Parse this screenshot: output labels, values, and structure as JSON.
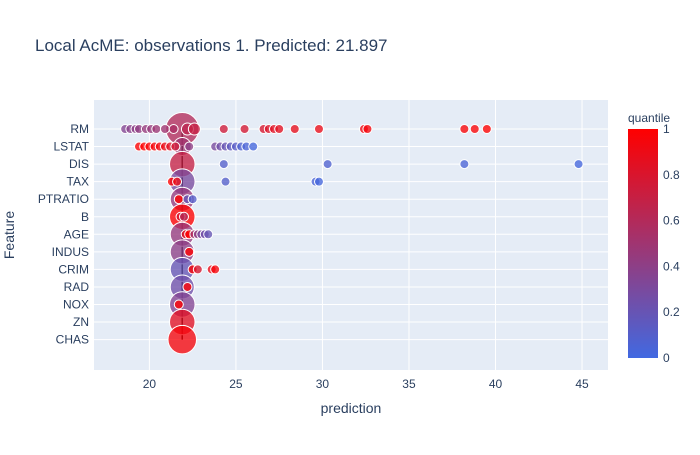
{
  "chart_data": {
    "type": "scatter",
    "title": "Local AcME: observations 1. Predicted: 21.897",
    "xlabel": "prediction",
    "ylabel": "Feature",
    "xlim": [
      16.8,
      46.5
    ],
    "xticks": [
      20,
      25,
      30,
      35,
      40,
      45
    ],
    "grid": true,
    "baseline": 21.897,
    "features": [
      "RM",
      "LSTAT",
      "DIS",
      "TAX",
      "PTRATIO",
      "B",
      "AGE",
      "INDUS",
      "CRIM",
      "RAD",
      "NOX",
      "ZN",
      "CHAS"
    ],
    "colorbar": {
      "title": "quantile",
      "min": 0,
      "max": 1,
      "ticks": [
        0,
        0.2,
        0.4,
        0.6,
        0.8,
        1
      ],
      "colors": [
        "#4169e1",
        "#ff0000"
      ]
    },
    "series": [
      {
        "feature": "RM",
        "x": [
          18.6,
          18.9,
          19.2,
          19.4,
          19.8,
          20.1,
          20.4,
          20.9,
          21.4,
          21.9,
          22.2,
          22.6,
          24.3,
          25.5,
          26.6,
          26.9,
          27.2,
          27.5,
          28.4,
          29.8,
          32.4,
          32.6,
          38.2,
          38.8,
          39.5
        ],
        "quantile": [
          0.35,
          0.38,
          0.4,
          0.42,
          0.45,
          0.45,
          0.48,
          0.5,
          0.55,
          0.6,
          0.65,
          0.7,
          0.75,
          0.78,
          0.8,
          0.82,
          0.84,
          0.86,
          0.88,
          0.9,
          0.93,
          0.95,
          0.97,
          0.98,
          1.0
        ],
        "size": [
          0.2,
          0.2,
          0.2,
          0.2,
          0.2,
          0.2,
          0.2,
          0.2,
          0.2,
          1.0,
          0.3,
          0.3,
          0.2,
          0.2,
          0.2,
          0.2,
          0.2,
          0.2,
          0.2,
          0.2,
          0.2,
          0.2,
          0.2,
          0.2,
          0.2
        ]
      },
      {
        "feature": "LSTAT",
        "x": [
          19.4,
          19.7,
          20.0,
          20.3,
          20.6,
          20.9,
          21.2,
          21.5,
          21.9,
          22.3,
          23.8,
          24.1,
          24.4,
          24.7,
          25.0,
          25.3,
          25.6,
          26.0
        ],
        "quantile": [
          1.0,
          1.0,
          0.98,
          0.96,
          0.94,
          0.9,
          0.85,
          0.75,
          0.5,
          0.4,
          0.3,
          0.25,
          0.2,
          0.15,
          0.12,
          0.08,
          0.05,
          0.02
        ],
        "size": [
          0.2,
          0.2,
          0.2,
          0.2,
          0.2,
          0.2,
          0.2,
          0.2,
          0.5,
          0.2,
          0.2,
          0.2,
          0.2,
          0.2,
          0.2,
          0.2,
          0.2,
          0.2
        ]
      },
      {
        "feature": "DIS",
        "x": [
          21.9,
          24.3,
          30.3,
          38.2,
          44.8
        ],
        "quantile": [
          0.7,
          0.1,
          0.08,
          0.05,
          0.02
        ],
        "size": [
          0.75,
          0.2,
          0.2,
          0.2,
          0.2
        ]
      },
      {
        "feature": "TAX",
        "x": [
          21.3,
          21.6,
          21.9,
          24.4,
          29.6,
          29.8
        ],
        "quantile": [
          1.0,
          0.9,
          0.3,
          0.1,
          0.05,
          0.02
        ],
        "size": [
          0.2,
          0.2,
          0.75,
          0.2,
          0.2,
          0.2
        ]
      },
      {
        "feature": "PTRATIO",
        "x": [
          21.7,
          21.9,
          22.2,
          22.5
        ],
        "quantile": [
          1.0,
          0.45,
          0.2,
          0.1
        ],
        "size": [
          0.2,
          0.7,
          0.2,
          0.2
        ]
      },
      {
        "feature": "B",
        "x": [
          21.8,
          21.9,
          22.0
        ],
        "quantile": [
          0.8,
          1.0,
          0.6
        ],
        "size": [
          0.2,
          0.75,
          0.2
        ]
      },
      {
        "feature": "AGE",
        "x": [
          21.9,
          22.1,
          22.3,
          22.6,
          22.8,
          23.0,
          23.2,
          23.4
        ],
        "quantile": [
          0.45,
          0.9,
          1.0,
          0.5,
          0.4,
          0.3,
          0.25,
          0.2
        ],
        "size": [
          0.7,
          0.2,
          0.2,
          0.2,
          0.2,
          0.2,
          0.2,
          0.2
        ]
      },
      {
        "feature": "INDUS",
        "x": [
          21.9,
          22.3
        ],
        "quantile": [
          0.4,
          1.0
        ],
        "size": [
          0.7,
          0.2
        ]
      },
      {
        "feature": "CRIM",
        "x": [
          21.9,
          22.5,
          22.8,
          23.6,
          23.8
        ],
        "quantile": [
          0.2,
          1.0,
          0.8,
          0.9,
          0.95
        ],
        "size": [
          0.7,
          0.2,
          0.2,
          0.2,
          0.2
        ]
      },
      {
        "feature": "RAD",
        "x": [
          21.9,
          22.2
        ],
        "quantile": [
          0.25,
          1.0
        ],
        "size": [
          0.7,
          0.2
        ]
      },
      {
        "feature": "NOX",
        "x": [
          21.7,
          21.9
        ],
        "quantile": [
          1.0,
          0.35
        ],
        "size": [
          0.2,
          0.75
        ]
      },
      {
        "feature": "ZN",
        "x": [
          21.9
        ],
        "quantile": [
          0.85
        ],
        "size": [
          0.75
        ]
      },
      {
        "feature": "CHAS",
        "x": [
          21.9
        ],
        "quantile": [
          0.95
        ],
        "size": [
          0.85
        ]
      }
    ]
  }
}
